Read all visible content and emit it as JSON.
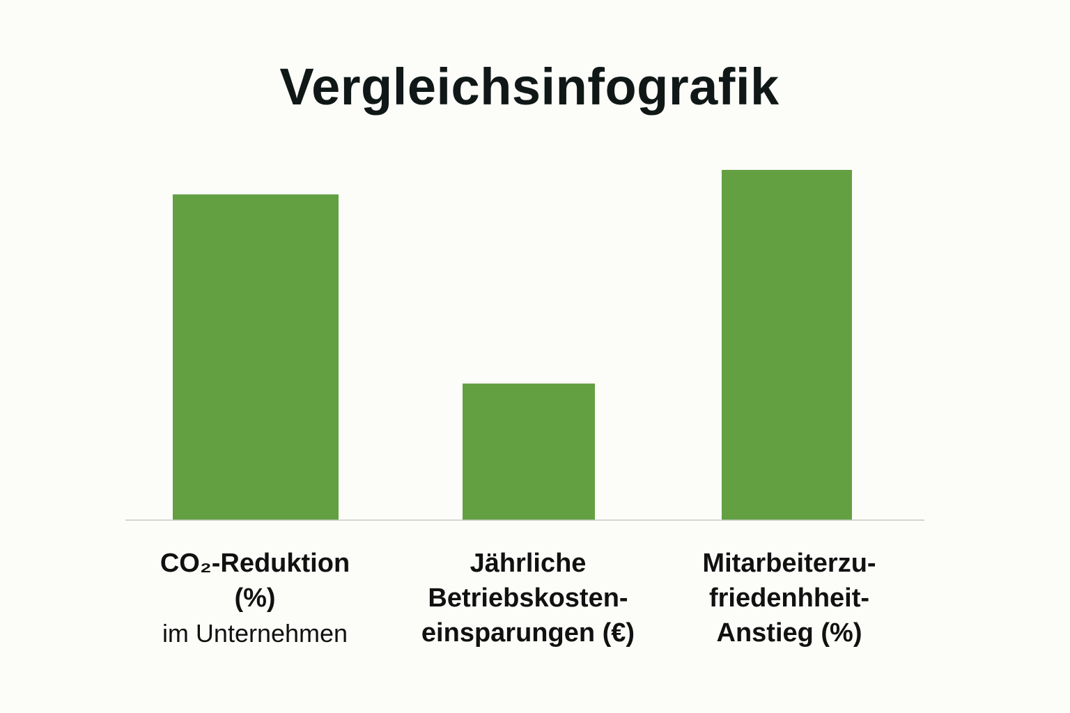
{
  "chart_data": {
    "type": "bar",
    "title": "Vergleichsinfografik",
    "categories": [
      "CO₂-Reduktion\n(%)",
      "Jährliche\nBetriebskosten-\neinsparungen (€)",
      "Mitarbeiterzu-\nfriedenhheit-\nAnstieg (%)"
    ],
    "category_sublabels": [
      "im Unternehmen",
      "",
      ""
    ],
    "values": [
      0.93,
      0.39,
      1.0
    ],
    "value_unit": "relative to tallest bar",
    "axis_labels_shown": false,
    "grid": false,
    "legend": "none",
    "colors": {
      "bar": "#63a042",
      "baseline": "#c8c8c8",
      "background": "#fcfcf9",
      "text": "#111111"
    }
  }
}
